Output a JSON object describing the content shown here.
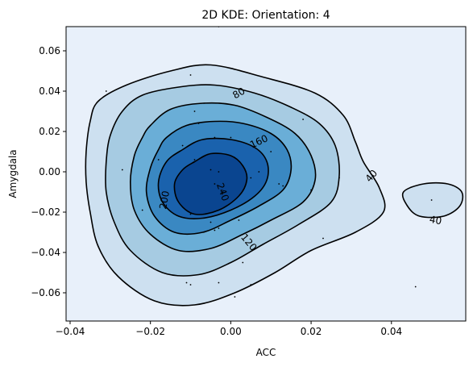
{
  "chart_data": {
    "type": "contour",
    "title": "2D KDE: Orientation: 4",
    "xlabel": "ACC",
    "ylabel": "Amygdala",
    "xlim": [
      -0.041,
      0.0585
    ],
    "ylim": [
      -0.074,
      0.072
    ],
    "x_ticks": [
      -0.04,
      -0.02,
      0.0,
      0.02,
      0.04
    ],
    "x_tick_labels": [
      "−0.04",
      "−0.02",
      "0.00",
      "0.02",
      "0.04"
    ],
    "y_ticks": [
      -0.06,
      -0.04,
      -0.02,
      0.0,
      0.02,
      0.04,
      0.06
    ],
    "y_tick_labels": [
      "−0.06",
      "−0.04",
      "−0.02",
      "0.00",
      "0.02",
      "0.04",
      "0.06"
    ],
    "colormap": "Blues",
    "levels": [
      40,
      80,
      120,
      160,
      200,
      240
    ],
    "fill_colors": [
      "#e8f0fa",
      "#cde0f0",
      "#a6cbe2",
      "#6aaed7",
      "#3a88c2",
      "#1a62ad",
      "#0a4590"
    ],
    "contour_labels": [
      {
        "text": "40",
        "x": 0.035,
        "y": -0.002,
        "angle": 50
      },
      {
        "text": "40",
        "x": 0.051,
        "y": -0.024,
        "angle": -10
      },
      {
        "text": "80",
        "x": 0.002,
        "y": 0.039,
        "angle": 30
      },
      {
        "text": "120",
        "x": 0.0045,
        "y": -0.035,
        "angle": -50
      },
      {
        "text": "160",
        "x": 0.007,
        "y": 0.015,
        "angle": 25
      },
      {
        "text": "200",
        "x": -0.0165,
        "y": -0.014,
        "angle": 80
      },
      {
        "text": "240",
        "x": -0.002,
        "y": -0.01,
        "angle": -70
      }
    ],
    "contours": [
      {
        "level": 40,
        "points": [
          [
            -0.033,
            0.035
          ],
          [
            -0.026,
            0.043
          ],
          [
            -0.015,
            0.05
          ],
          [
            -0.005,
            0.053
          ],
          [
            0.008,
            0.047
          ],
          [
            0.021,
            0.039
          ],
          [
            0.028,
            0.028
          ],
          [
            0.031,
            0.015
          ],
          [
            0.033,
            0.005
          ],
          [
            0.037,
            -0.008
          ],
          [
            0.038,
            -0.02
          ],
          [
            0.031,
            -0.03
          ],
          [
            0.02,
            -0.039
          ],
          [
            0.011,
            -0.05
          ],
          [
            0.001,
            -0.06
          ],
          [
            -0.009,
            -0.066
          ],
          [
            -0.019,
            -0.064
          ],
          [
            -0.028,
            -0.052
          ],
          [
            -0.033,
            -0.037
          ],
          [
            -0.035,
            -0.02
          ],
          [
            -0.036,
            -0.005
          ],
          [
            -0.036,
            0.01
          ],
          [
            -0.035,
            0.025
          ]
        ]
      },
      {
        "level": 40,
        "points": [
          [
            0.043,
            -0.01
          ],
          [
            0.048,
            -0.006
          ],
          [
            0.054,
            -0.006
          ],
          [
            0.0575,
            -0.01
          ],
          [
            0.057,
            -0.017
          ],
          [
            0.053,
            -0.022
          ],
          [
            0.047,
            -0.022
          ],
          [
            0.044,
            -0.017
          ]
        ]
      },
      {
        "level": 80,
        "points": [
          [
            -0.027,
            0.03
          ],
          [
            -0.022,
            0.038
          ],
          [
            -0.013,
            0.042
          ],
          [
            -0.004,
            0.043
          ],
          [
            0.006,
            0.039
          ],
          [
            0.015,
            0.032
          ],
          [
            0.022,
            0.024
          ],
          [
            0.026,
            0.013
          ],
          [
            0.027,
            -0.002
          ],
          [
            0.025,
            -0.015
          ],
          [
            0.017,
            -0.026
          ],
          [
            0.008,
            -0.036
          ],
          [
            0.0,
            -0.045
          ],
          [
            -0.008,
            -0.051
          ],
          [
            -0.017,
            -0.05
          ],
          [
            -0.025,
            -0.039
          ],
          [
            -0.029,
            -0.025
          ],
          [
            -0.031,
            -0.01
          ],
          [
            -0.031,
            0.005
          ],
          [
            -0.03,
            0.018
          ]
        ]
      },
      {
        "level": 120,
        "points": [
          [
            -0.02,
            0.023
          ],
          [
            -0.015,
            0.031
          ],
          [
            -0.007,
            0.034
          ],
          [
            0.001,
            0.033
          ],
          [
            0.009,
            0.027
          ],
          [
            0.016,
            0.019
          ],
          [
            0.02,
            0.008
          ],
          [
            0.021,
            -0.004
          ],
          [
            0.018,
            -0.015
          ],
          [
            0.01,
            -0.024
          ],
          [
            0.003,
            -0.031
          ],
          [
            -0.005,
            -0.038
          ],
          [
            -0.013,
            -0.039
          ],
          [
            -0.02,
            -0.031
          ],
          [
            -0.024,
            -0.019
          ],
          [
            -0.025,
            -0.005
          ],
          [
            -0.024,
            0.008
          ],
          [
            -0.022,
            0.017
          ]
        ]
      },
      {
        "level": 160,
        "points": [
          [
            -0.016,
            0.017
          ],
          [
            -0.011,
            0.023
          ],
          [
            -0.004,
            0.025
          ],
          [
            0.003,
            0.024
          ],
          [
            0.01,
            0.019
          ],
          [
            0.014,
            0.011
          ],
          [
            0.015,
            0.001
          ],
          [
            0.013,
            -0.009
          ],
          [
            0.007,
            -0.017
          ],
          [
            0.0,
            -0.024
          ],
          [
            -0.007,
            -0.03
          ],
          [
            -0.014,
            -0.03
          ],
          [
            -0.019,
            -0.022
          ],
          [
            -0.021,
            -0.01
          ],
          [
            -0.02,
            0.002
          ],
          [
            -0.018,
            0.011
          ]
        ]
      },
      {
        "level": 200,
        "points": [
          [
            -0.012,
            0.011
          ],
          [
            -0.007,
            0.016
          ],
          [
            0.0,
            0.016
          ],
          [
            0.006,
            0.012
          ],
          [
            0.009,
            0.005
          ],
          [
            0.009,
            -0.004
          ],
          [
            0.006,
            -0.012
          ],
          [
            0.0,
            -0.019
          ],
          [
            -0.007,
            -0.023
          ],
          [
            -0.013,
            -0.022
          ],
          [
            -0.017,
            -0.015
          ],
          [
            -0.018,
            -0.005
          ],
          [
            -0.016,
            0.005
          ]
        ]
      },
      {
        "level": 240,
        "points": [
          [
            -0.009,
            0.005
          ],
          [
            -0.005,
            0.009
          ],
          [
            0.0,
            0.008
          ],
          [
            0.003,
            0.003
          ],
          [
            0.004,
            -0.004
          ],
          [
            0.002,
            -0.012
          ],
          [
            -0.003,
            -0.019
          ],
          [
            -0.009,
            -0.021
          ],
          [
            -0.013,
            -0.015
          ],
          [
            -0.014,
            -0.006
          ],
          [
            -0.012,
            0.001
          ]
        ]
      }
    ],
    "points": [
      [
        -0.031,
        0.04
      ],
      [
        -0.01,
        0.048
      ],
      [
        -0.009,
        0.03
      ],
      [
        -0.008,
        0.024
      ],
      [
        -0.012,
        0.013
      ],
      [
        -0.004,
        0.017
      ],
      [
        0.0,
        0.017
      ],
      [
        -0.018,
        0.006
      ],
      [
        -0.009,
        0.006
      ],
      [
        -0.005,
        0.001
      ],
      [
        -0.003,
        0.0
      ],
      [
        -0.027,
        0.001
      ],
      [
        -0.002,
        -0.01
      ],
      [
        -0.004,
        -0.006
      ],
      [
        0.005,
        -0.003
      ],
      [
        0.007,
        0.0
      ],
      [
        0.012,
        -0.006
      ],
      [
        0.013,
        -0.007
      ],
      [
        0.01,
        0.01
      ],
      [
        0.018,
        0.026
      ],
      [
        0.02,
        -0.009
      ],
      [
        0.027,
        -0.003
      ],
      [
        -0.022,
        -0.019
      ],
      [
        -0.01,
        -0.021
      ],
      [
        -0.005,
        -0.025
      ],
      [
        -0.003,
        -0.028
      ],
      [
        -0.004,
        -0.029
      ],
      [
        0.002,
        -0.024
      ],
      [
        0.023,
        -0.033
      ],
      [
        0.003,
        -0.045
      ],
      [
        -0.011,
        -0.055
      ],
      [
        -0.01,
        -0.056
      ],
      [
        -0.003,
        -0.055
      ],
      [
        0.005,
        -0.056
      ],
      [
        0.001,
        -0.062
      ],
      [
        0.046,
        -0.057
      ],
      [
        0.05,
        -0.014
      ],
      [
        -0.003,
        0.072
      ]
    ]
  }
}
